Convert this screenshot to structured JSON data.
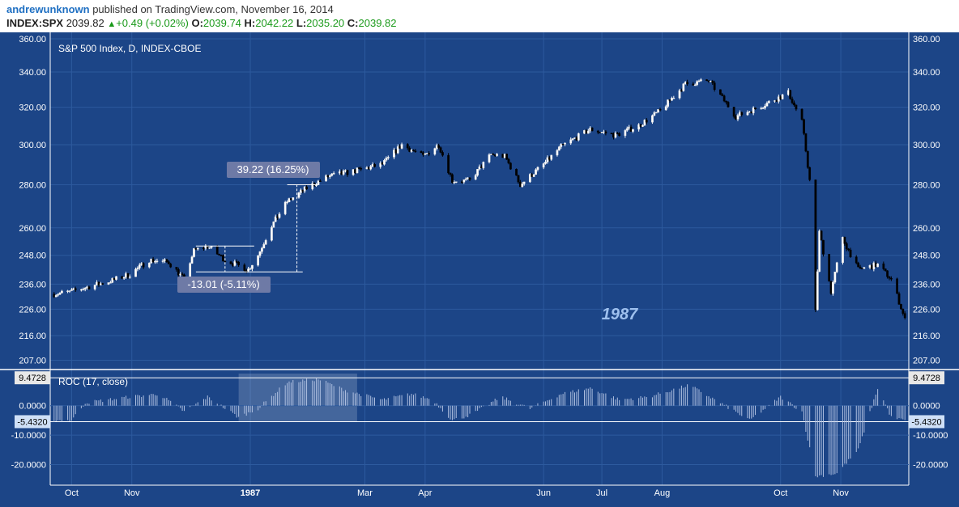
{
  "header": {
    "author": "andrewunknown",
    "published_text": "published on TradingView.com, November 16, 2014",
    "symbol": "INDEX:SPX",
    "last": "2039.82",
    "change": "+0.49 (+0.02%)",
    "o_label": "O:",
    "o_value": "2039.74",
    "h_label": "H:",
    "h_value": "2042.22",
    "l_label": "L:",
    "l_value": "2035.20",
    "c_label": "C:",
    "c_value": "2039.82"
  },
  "colors": {
    "background": "#1c4587",
    "up_candle": "#ffffff",
    "down_candle": "#000000",
    "grid": "#2d5a9e",
    "axis_text": "#ffffff",
    "roc_bar": "#aebfe0",
    "annotation_box": "#6e7aa6",
    "highlight": "#ffffff"
  },
  "chart_data": [
    {
      "type": "candlestick",
      "title": "S&P 500 Index, D, INDEX-CBOE",
      "watermark": "1987",
      "y_scale": "log",
      "ylim": [
        204,
        362
      ],
      "y_ticks": [
        "360.00",
        "340.00",
        "320.00",
        "300.00",
        "280.00",
        "260.00",
        "248.00",
        "236.00",
        "226.00",
        "216.00",
        "207.00"
      ],
      "x_ticks": [
        "Oct",
        "Nov",
        "1987",
        "Mar",
        "Apr",
        "Jun",
        "Jul",
        "Aug",
        "Oct",
        "Nov"
      ],
      "series_path": [
        {
          "x": "1986-09-22",
          "y": 232
        },
        {
          "x": "1986-10-01",
          "y": 233
        },
        {
          "x": "1986-10-10",
          "y": 235
        },
        {
          "x": "1986-10-20",
          "y": 237
        },
        {
          "x": "1986-10-31",
          "y": 240
        },
        {
          "x": "1986-11-10",
          "y": 246
        },
        {
          "x": "1986-11-20",
          "y": 245
        },
        {
          "x": "1986-11-28",
          "y": 238
        },
        {
          "x": "1986-12-03",
          "y": 250
        },
        {
          "x": "1986-12-10",
          "y": 252
        },
        {
          "x": "1986-12-19",
          "y": 246
        },
        {
          "x": "1986-12-31",
          "y": 242
        },
        {
          "x": "1987-01-05",
          "y": 248
        },
        {
          "x": "1987-01-12",
          "y": 261
        },
        {
          "x": "1987-01-20",
          "y": 272
        },
        {
          "x": "1987-01-31",
          "y": 279
        },
        {
          "x": "1987-02-10",
          "y": 284
        },
        {
          "x": "1987-02-25",
          "y": 287
        },
        {
          "x": "1987-03-10",
          "y": 290
        },
        {
          "x": "1987-03-20",
          "y": 300
        },
        {
          "x": "1987-03-31",
          "y": 294
        },
        {
          "x": "1987-04-08",
          "y": 300
        },
        {
          "x": "1987-04-15",
          "y": 282
        },
        {
          "x": "1987-04-24",
          "y": 282
        },
        {
          "x": "1987-05-05",
          "y": 295
        },
        {
          "x": "1987-05-12",
          "y": 294
        },
        {
          "x": "1987-05-20",
          "y": 280
        },
        {
          "x": "1987-06-01",
          "y": 290
        },
        {
          "x": "1987-06-10",
          "y": 299
        },
        {
          "x": "1987-06-25",
          "y": 308
        },
        {
          "x": "1987-07-08",
          "y": 305
        },
        {
          "x": "1987-07-20",
          "y": 310
        },
        {
          "x": "1987-07-31",
          "y": 318
        },
        {
          "x": "1987-08-13",
          "y": 333
        },
        {
          "x": "1987-08-25",
          "y": 335
        },
        {
          "x": "1987-09-08",
          "y": 315
        },
        {
          "x": "1987-09-20",
          "y": 320
        },
        {
          "x": "1987-10-05",
          "y": 328
        },
        {
          "x": "1987-10-12",
          "y": 312
        },
        {
          "x": "1987-10-16",
          "y": 282
        },
        {
          "x": "1987-10-19",
          "y": 225
        },
        {
          "x": "1987-10-21",
          "y": 258
        },
        {
          "x": "1987-10-27",
          "y": 233
        },
        {
          "x": "1987-11-02",
          "y": 255
        },
        {
          "x": "1987-11-10",
          "y": 242
        },
        {
          "x": "1987-11-20",
          "y": 244
        },
        {
          "x": "1987-11-27",
          "y": 238
        },
        {
          "x": "1987-12-01",
          "y": 229
        },
        {
          "x": "1987-12-04",
          "y": 222
        }
      ]
    },
    {
      "type": "bar",
      "title": "ROC (17, close)",
      "ylim": [
        -27,
        12
      ],
      "y_ticks": [
        "0.0000",
        "-10.0000",
        "-20.0000"
      ],
      "current_values": [
        "9.4728",
        "-5.4320"
      ],
      "series_path": [
        {
          "x": "1986-09-22",
          "y": -5
        },
        {
          "x": "1986-10-01",
          "y": -5
        },
        {
          "x": "1986-10-08",
          "y": 1
        },
        {
          "x": "1986-10-31",
          "y": 3
        },
        {
          "x": "1986-11-15",
          "y": 4
        },
        {
          "x": "1986-11-28",
          "y": -2
        },
        {
          "x": "1986-12-10",
          "y": 3
        },
        {
          "x": "1986-12-26",
          "y": -4
        },
        {
          "x": "1987-01-05",
          "y": -1
        },
        {
          "x": "1987-01-20",
          "y": 8
        },
        {
          "x": "1987-02-05",
          "y": 9
        },
        {
          "x": "1987-02-20",
          "y": 5
        },
        {
          "x": "1987-03-10",
          "y": 2
        },
        {
          "x": "1987-03-25",
          "y": 4
        },
        {
          "x": "1987-04-05",
          "y": 2
        },
        {
          "x": "1987-04-15",
          "y": -5
        },
        {
          "x": "1987-04-25",
          "y": -3
        },
        {
          "x": "1987-05-10",
          "y": 3
        },
        {
          "x": "1987-05-25",
          "y": -1
        },
        {
          "x": "1987-06-10",
          "y": 4
        },
        {
          "x": "1987-06-25",
          "y": 6
        },
        {
          "x": "1987-07-10",
          "y": 2
        },
        {
          "x": "1987-07-25",
          "y": 3
        },
        {
          "x": "1987-08-15",
          "y": 7
        },
        {
          "x": "1987-09-05",
          "y": -1
        },
        {
          "x": "1987-09-15",
          "y": -5
        },
        {
          "x": "1987-10-01",
          "y": 3
        },
        {
          "x": "1987-10-12",
          "y": -2
        },
        {
          "x": "1987-10-19",
          "y": -24
        },
        {
          "x": "1987-10-30",
          "y": -23
        },
        {
          "x": "1987-11-10",
          "y": -15
        },
        {
          "x": "1987-11-20",
          "y": 6
        },
        {
          "x": "1987-11-27",
          "y": -4
        },
        {
          "x": "1987-12-04",
          "y": -5
        }
      ]
    }
  ],
  "annotations": {
    "rise_label": "39.22 (16.25%)",
    "drop_label": "-13.01 (-5.11%)"
  }
}
